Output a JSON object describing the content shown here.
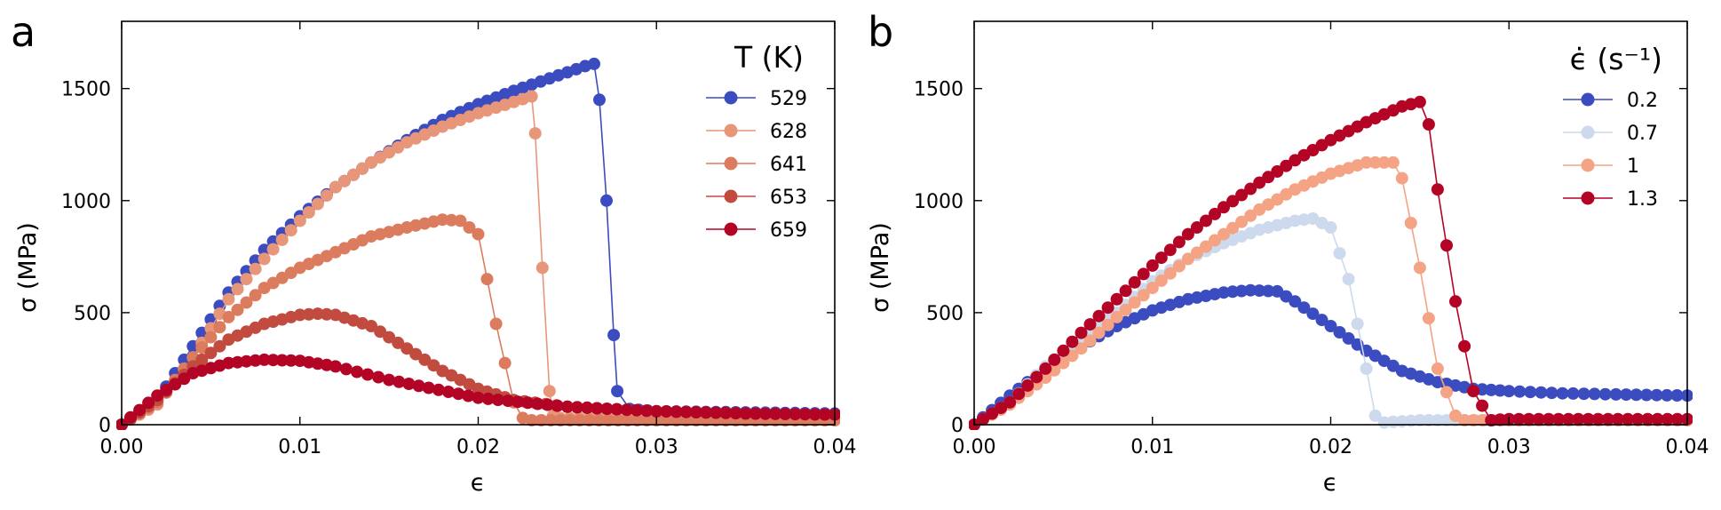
{
  "chart_data": [
    {
      "panel": "a",
      "type": "line",
      "xlabel": "ϵ",
      "ylabel": "σ (MPa)",
      "xlim": [
        0,
        0.04
      ],
      "ylim": [
        0,
        1800
      ],
      "xticks": [
        0.0,
        0.01,
        0.02,
        0.03,
        0.04
      ],
      "xtick_labels": [
        "0.00",
        "0.01",
        "0.02",
        "0.03",
        "0.04"
      ],
      "yticks": [
        0,
        500,
        1000,
        1500
      ],
      "ytick_labels": [
        "0",
        "500",
        "1000",
        "1500"
      ],
      "legend_title": "T (K)",
      "legend_position": "top-right",
      "series": [
        {
          "name": "529",
          "color": "#3b4cc0",
          "x": [
            0.0,
            0.002,
            0.004,
            0.006,
            0.008,
            0.01,
            0.012,
            0.014,
            0.016,
            0.018,
            0.02,
            0.022,
            0.024,
            0.026,
            0.0265,
            0.0268,
            0.0272,
            0.0276,
            0.0278,
            0.0285,
            0.03,
            0.035,
            0.04
          ],
          "y": [
            0,
            110,
            350,
            590,
            780,
            930,
            1060,
            1170,
            1270,
            1360,
            1430,
            1490,
            1545,
            1600,
            1610,
            1450,
            1000,
            400,
            150,
            70,
            60,
            55,
            50
          ]
        },
        {
          "name": "628",
          "color": "#e8967a",
          "x": [
            0.0,
            0.002,
            0.004,
            0.006,
            0.008,
            0.01,
            0.012,
            0.014,
            0.016,
            0.018,
            0.02,
            0.022,
            0.023,
            0.0232,
            0.0236,
            0.024,
            0.0242,
            0.0246,
            0.03,
            0.035,
            0.04
          ],
          "y": [
            0,
            90,
            300,
            560,
            740,
            910,
            1060,
            1170,
            1260,
            1330,
            1390,
            1440,
            1465,
            1300,
            700,
            150,
            40,
            30,
            30,
            30,
            30
          ]
        },
        {
          "name": "641",
          "color": "#dc7c5f",
          "x": [
            0.0,
            0.002,
            0.004,
            0.006,
            0.008,
            0.01,
            0.012,
            0.014,
            0.016,
            0.018,
            0.019,
            0.02,
            0.021,
            0.022,
            0.0225,
            0.023,
            0.03,
            0.035,
            0.04
          ],
          "y": [
            0,
            100,
            300,
            480,
            610,
            700,
            770,
            840,
            880,
            915,
            910,
            850,
            450,
            100,
            30,
            20,
            20,
            20,
            20
          ]
        },
        {
          "name": "653",
          "color": "#c24b40",
          "x": [
            0.0,
            0.002,
            0.004,
            0.006,
            0.008,
            0.01,
            0.011,
            0.012,
            0.014,
            0.016,
            0.018,
            0.02,
            0.022,
            0.025,
            0.03,
            0.035,
            0.04
          ],
          "y": [
            0,
            110,
            260,
            380,
            450,
            490,
            495,
            490,
            440,
            340,
            240,
            160,
            110,
            80,
            60,
            50,
            45
          ]
        },
        {
          "name": "659",
          "color": "#b40426",
          "x": [
            0.0,
            0.002,
            0.004,
            0.006,
            0.008,
            0.01,
            0.012,
            0.015,
            0.02,
            0.025,
            0.03,
            0.035,
            0.04
          ],
          "y": [
            0,
            130,
            230,
            275,
            290,
            285,
            260,
            200,
            120,
            80,
            60,
            50,
            45
          ]
        }
      ]
    },
    {
      "panel": "b",
      "type": "line",
      "xlabel": "ϵ",
      "ylabel": "σ (MPa)",
      "xlim": [
        0,
        0.04
      ],
      "ylim": [
        0,
        1800
      ],
      "xticks": [
        0.0,
        0.01,
        0.02,
        0.03,
        0.04
      ],
      "xtick_labels": [
        "0.00",
        "0.01",
        "0.02",
        "0.03",
        "0.04"
      ],
      "yticks": [
        0,
        500,
        1000,
        1500
      ],
      "ytick_labels": [
        "0",
        "500",
        "1000",
        "1500"
      ],
      "legend_title": "ϵ̇ (s⁻¹)",
      "legend_position": "top-right",
      "series": [
        {
          "name": "0.2",
          "color": "#3b4cc0",
          "x": [
            0.0,
            0.002,
            0.004,
            0.006,
            0.008,
            0.01,
            0.012,
            0.014,
            0.0155,
            0.017,
            0.018,
            0.02,
            0.022,
            0.024,
            0.026,
            0.028,
            0.03,
            0.033,
            0.036,
            0.04
          ],
          "y": [
            0,
            130,
            250,
            350,
            440,
            510,
            560,
            590,
            600,
            595,
            550,
            440,
            330,
            240,
            190,
            160,
            150,
            140,
            135,
            130
          ]
        },
        {
          "name": "0.7",
          "color": "#cdd9ec",
          "x": [
            0.0,
            0.002,
            0.004,
            0.006,
            0.008,
            0.01,
            0.012,
            0.014,
            0.016,
            0.018,
            0.019,
            0.02,
            0.021,
            0.022,
            0.0225,
            0.023,
            0.025,
            0.027,
            0.04
          ],
          "y": [
            0,
            100,
            260,
            390,
            500,
            640,
            740,
            810,
            870,
            910,
            920,
            880,
            650,
            250,
            40,
            10,
            20,
            20,
            20
          ]
        },
        {
          "name": "1",
          "color": "#f4a384",
          "x": [
            0.0,
            0.002,
            0.004,
            0.006,
            0.008,
            0.01,
            0.012,
            0.014,
            0.016,
            0.018,
            0.02,
            0.022,
            0.0235,
            0.024,
            0.025,
            0.026,
            0.027,
            0.0275,
            0.03,
            0.035,
            0.04
          ],
          "y": [
            0,
            90,
            210,
            340,
            480,
            610,
            740,
            850,
            960,
            1050,
            1120,
            1170,
            1170,
            1100,
            700,
            250,
            40,
            20,
            20,
            20,
            20
          ]
        },
        {
          "name": "1.3",
          "color": "#b40426",
          "x": [
            0.0,
            0.002,
            0.004,
            0.006,
            0.008,
            0.01,
            0.012,
            0.014,
            0.016,
            0.018,
            0.02,
            0.022,
            0.024,
            0.025,
            0.0255,
            0.026,
            0.027,
            0.028,
            0.029,
            0.03,
            0.035,
            0.04
          ],
          "y": [
            0,
            100,
            250,
            410,
            560,
            710,
            850,
            970,
            1080,
            1180,
            1270,
            1350,
            1420,
            1440,
            1340,
            1050,
            550,
            150,
            20,
            25,
            25,
            25
          ]
        }
      ]
    }
  ]
}
